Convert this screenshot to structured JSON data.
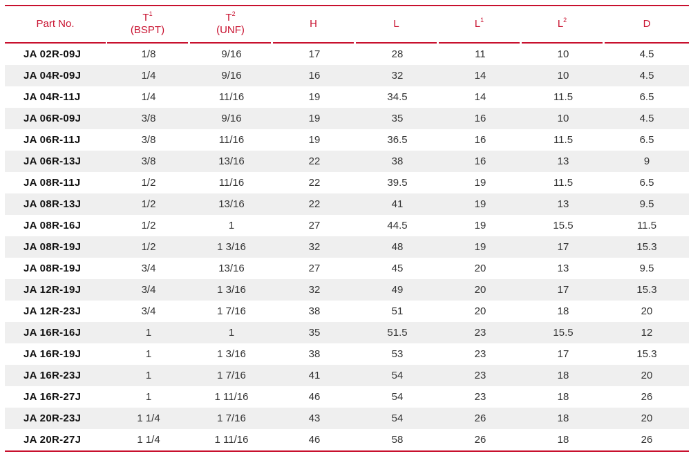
{
  "header": {
    "part": "Part No.",
    "t1_main": "T",
    "t1_sub": "1",
    "t1_unit": "(BSPT)",
    "t2_main": "T",
    "t2_sub": "2",
    "t2_unit": "(UNF)",
    "h": "H",
    "l": "L",
    "l1_main": "L",
    "l1_sub": "1",
    "l2_main": "L",
    "l2_sub": "2",
    "d": "D"
  },
  "rows": [
    [
      "JA 02R-09J",
      "1/8",
      "9/16",
      "17",
      "28",
      "11",
      "10",
      "4.5"
    ],
    [
      "JA 04R-09J",
      "1/4",
      "9/16",
      "16",
      "32",
      "14",
      "10",
      "4.5"
    ],
    [
      "JA 04R-11J",
      "1/4",
      "11/16",
      "19",
      "34.5",
      "14",
      "11.5",
      "6.5"
    ],
    [
      "JA 06R-09J",
      "3/8",
      "9/16",
      "19",
      "35",
      "16",
      "10",
      "4.5"
    ],
    [
      "JA 06R-11J",
      "3/8",
      "11/16",
      "19",
      "36.5",
      "16",
      "11.5",
      "6.5"
    ],
    [
      "JA 06R-13J",
      "3/8",
      "13/16",
      "22",
      "38",
      "16",
      "13",
      "9"
    ],
    [
      "JA 08R-11J",
      "1/2",
      "11/16",
      "22",
      "39.5",
      "19",
      "11.5",
      "6.5"
    ],
    [
      "JA 08R-13J",
      "1/2",
      "13/16",
      "22",
      "41",
      "19",
      "13",
      "9.5"
    ],
    [
      "JA 08R-16J",
      "1/2",
      "1",
      "27",
      "44.5",
      "19",
      "15.5",
      "11.5"
    ],
    [
      "JA 08R-19J",
      "1/2",
      "1 3/16",
      "32",
      "48",
      "19",
      "17",
      "15.3"
    ],
    [
      "JA 08R-19J",
      "3/4",
      "13/16",
      "27",
      "45",
      "20",
      "13",
      "9.5"
    ],
    [
      "JA 12R-19J",
      "3/4",
      "1 3/16",
      "32",
      "49",
      "20",
      "17",
      "15.3"
    ],
    [
      "JA 12R-23J",
      "3/4",
      "1 7/16",
      "38",
      "51",
      "20",
      "18",
      "20"
    ],
    [
      "JA 16R-16J",
      "1",
      "1",
      "35",
      "51.5",
      "23",
      "15.5",
      "12"
    ],
    [
      "JA 16R-19J",
      "1",
      "1 3/16",
      "38",
      "53",
      "23",
      "17",
      "15.3"
    ],
    [
      "JA 16R-23J",
      "1",
      "1 7/16",
      "41",
      "54",
      "23",
      "18",
      "20"
    ],
    [
      "JA 16R-27J",
      "1",
      "1 11/16",
      "46",
      "54",
      "23",
      "18",
      "26"
    ],
    [
      "JA 20R-23J",
      "1 1/4",
      "1 7/16",
      "43",
      "54",
      "26",
      "18",
      "20"
    ],
    [
      "JA 20R-27J",
      "1 1/4",
      "1 11/16",
      "46",
      "58",
      "26",
      "18",
      "26"
    ]
  ]
}
